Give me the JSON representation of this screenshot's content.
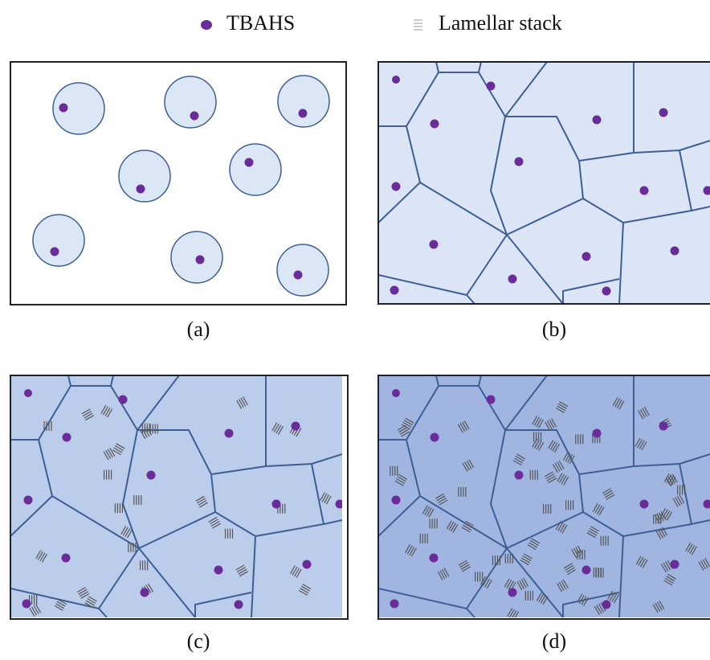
{
  "legend": {
    "items": [
      {
        "label": "TBAHS"
      },
      {
        "label": "Lamellar stack"
      }
    ]
  },
  "panels": [
    {
      "label": "(a)"
    },
    {
      "label": "(b)"
    },
    {
      "label": "(c)"
    },
    {
      "label": "(d)"
    }
  ]
}
